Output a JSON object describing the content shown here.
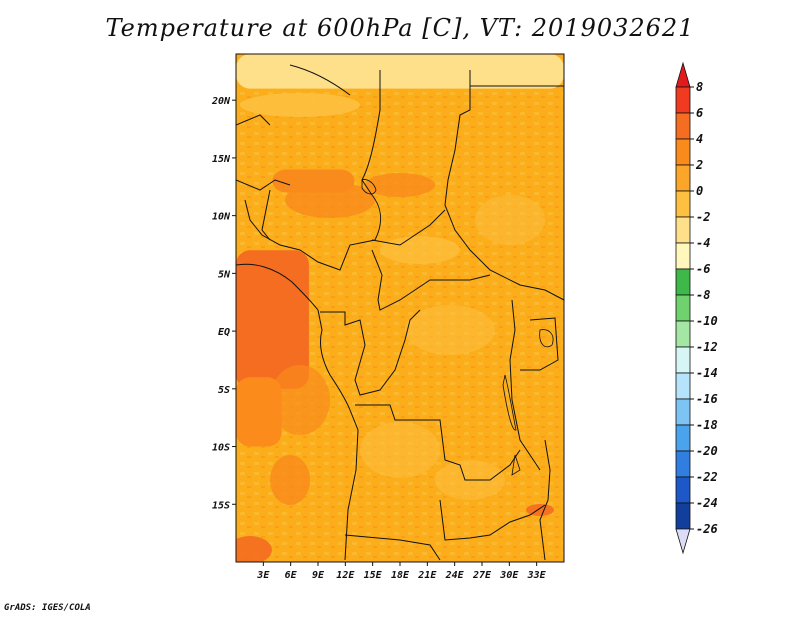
{
  "title": "Temperature at 600hPa [C], VT: 2019032621",
  "credit": "GrADS: IGES/COLA",
  "map": {
    "lon_range": [
      0,
      36
    ],
    "lat_range": [
      -20,
      24
    ],
    "lon_ticks": [
      {
        "value": 3,
        "label": "3E"
      },
      {
        "value": 6,
        "label": "6E"
      },
      {
        "value": 9,
        "label": "9E"
      },
      {
        "value": 12,
        "label": "12E"
      },
      {
        "value": 15,
        "label": "15E"
      },
      {
        "value": 18,
        "label": "18E"
      },
      {
        "value": 21,
        "label": "21E"
      },
      {
        "value": 24,
        "label": "24E"
      },
      {
        "value": 27,
        "label": "27E"
      },
      {
        "value": 30,
        "label": "30E"
      },
      {
        "value": 33,
        "label": "33E"
      }
    ],
    "lat_ticks": [
      {
        "value": 20,
        "label": "20N"
      },
      {
        "value": 15,
        "label": "15N"
      },
      {
        "value": 10,
        "label": "10N"
      },
      {
        "value": 5,
        "label": "5N"
      },
      {
        "value": 0,
        "label": "EQ"
      },
      {
        "value": -5,
        "label": "5S"
      },
      {
        "value": -10,
        "label": "10S"
      },
      {
        "value": -15,
        "label": "15S"
      }
    ],
    "background_color": "#fbad1a",
    "regions": [
      {
        "name": "north-cool-band",
        "color": "#fee08b",
        "lon": [
          0,
          36
        ],
        "lat": [
          21,
          24
        ]
      },
      {
        "name": "west-coast-warm",
        "color": "#f46d20",
        "lon": [
          0,
          8
        ],
        "lat": [
          -5,
          7
        ]
      },
      {
        "name": "southwest-warm",
        "color": "#fb8c1c",
        "lon": [
          0,
          5
        ],
        "lat": [
          -10,
          -4
        ]
      },
      {
        "name": "sahel-warm-strip",
        "color": "#f98a1c",
        "lon": [
          4,
          13
        ],
        "lat": [
          12,
          14
        ]
      }
    ]
  },
  "colorbar": {
    "levels": [
      "8",
      "6",
      "4",
      "2",
      "0",
      "-2",
      "-4",
      "-6",
      "-8",
      "-10",
      "-12",
      "-14",
      "-16",
      "-18",
      "-20",
      "-22",
      "-24",
      "-26"
    ],
    "colors": [
      "#e31a1c",
      "#f03b20",
      "#f46d20",
      "#f98a1c",
      "#fba629",
      "#fdc040",
      "#fee08b",
      "#fff7bc",
      "#3fb84a",
      "#6fd26f",
      "#a4e6a4",
      "#d8f5f5",
      "#b5e3fb",
      "#7dc4f4",
      "#4aa3ec",
      "#2f7ee0",
      "#1d57c8",
      "#123e9c",
      "#0c1e6e",
      "#dcdcf4"
    ]
  }
}
